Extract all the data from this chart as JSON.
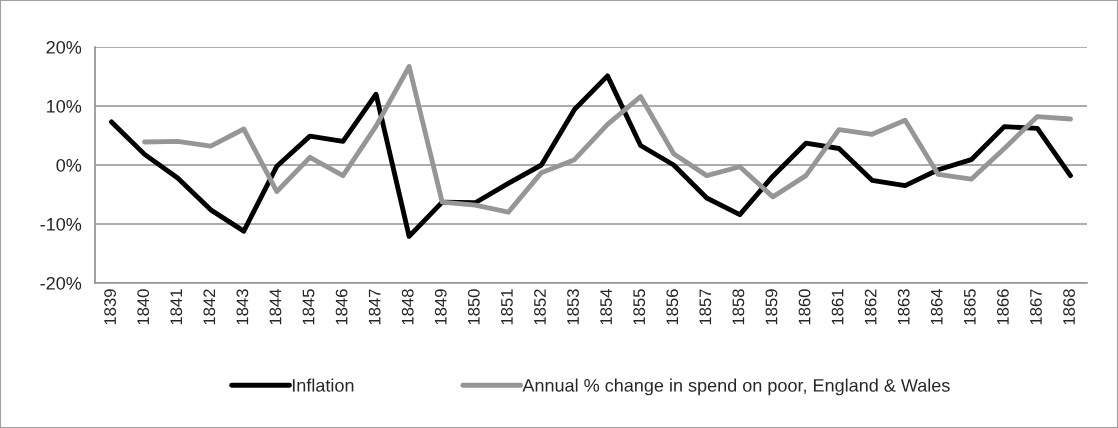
{
  "chart_data": {
    "type": "line",
    "categories": [
      "1839",
      "1840",
      "1841",
      "1842",
      "1843",
      "1844",
      "1845",
      "1846",
      "1847",
      "1848",
      "1849",
      "1850",
      "1851",
      "1852",
      "1853",
      "1854",
      "1855",
      "1856",
      "1857",
      "1858",
      "1859",
      "1860",
      "1861",
      "1862",
      "1863",
      "1864",
      "1865",
      "1866",
      "1867",
      "1868"
    ],
    "series": [
      {
        "name": "Inflation",
        "color": "#000000",
        "values": [
          7.3,
          1.8,
          -2.2,
          -7.6,
          -11.2,
          -0.2,
          4.9,
          4.0,
          12.0,
          -12.1,
          -6.3,
          -6.4,
          -3.1,
          0.0,
          9.4,
          15.1,
          3.3,
          0.0,
          -5.6,
          -8.4,
          -1.9,
          3.7,
          2.8,
          -2.6,
          -3.5,
          -0.8,
          0.9,
          6.5,
          6.2,
          -1.8
        ]
      },
      {
        "name": "Annual % change in spend on poor, England & Wales",
        "color": "#969696",
        "values": [
          null,
          3.9,
          4.0,
          3.2,
          6.1,
          -4.5,
          1.3,
          -1.8,
          6.6,
          16.7,
          -6.3,
          -6.8,
          -8.0,
          -1.3,
          0.9,
          6.9,
          11.6,
          1.9,
          -1.8,
          -0.3,
          -5.4,
          -1.8,
          6.0,
          5.2,
          7.6,
          -1.6,
          -2.4,
          2.8,
          8.2,
          7.8
        ]
      }
    ],
    "ylim": [
      -20,
      20
    ],
    "yticks": [
      {
        "value": -20,
        "label": "-20%"
      },
      {
        "value": -10,
        "label": "-10%"
      },
      {
        "value": 0,
        "label": "0%"
      },
      {
        "value": 10,
        "label": "10%"
      },
      {
        "value": 20,
        "label": "20%"
      }
    ],
    "grid": "y",
    "legend": "bottom",
    "marker": "none",
    "line_style": "solid"
  }
}
